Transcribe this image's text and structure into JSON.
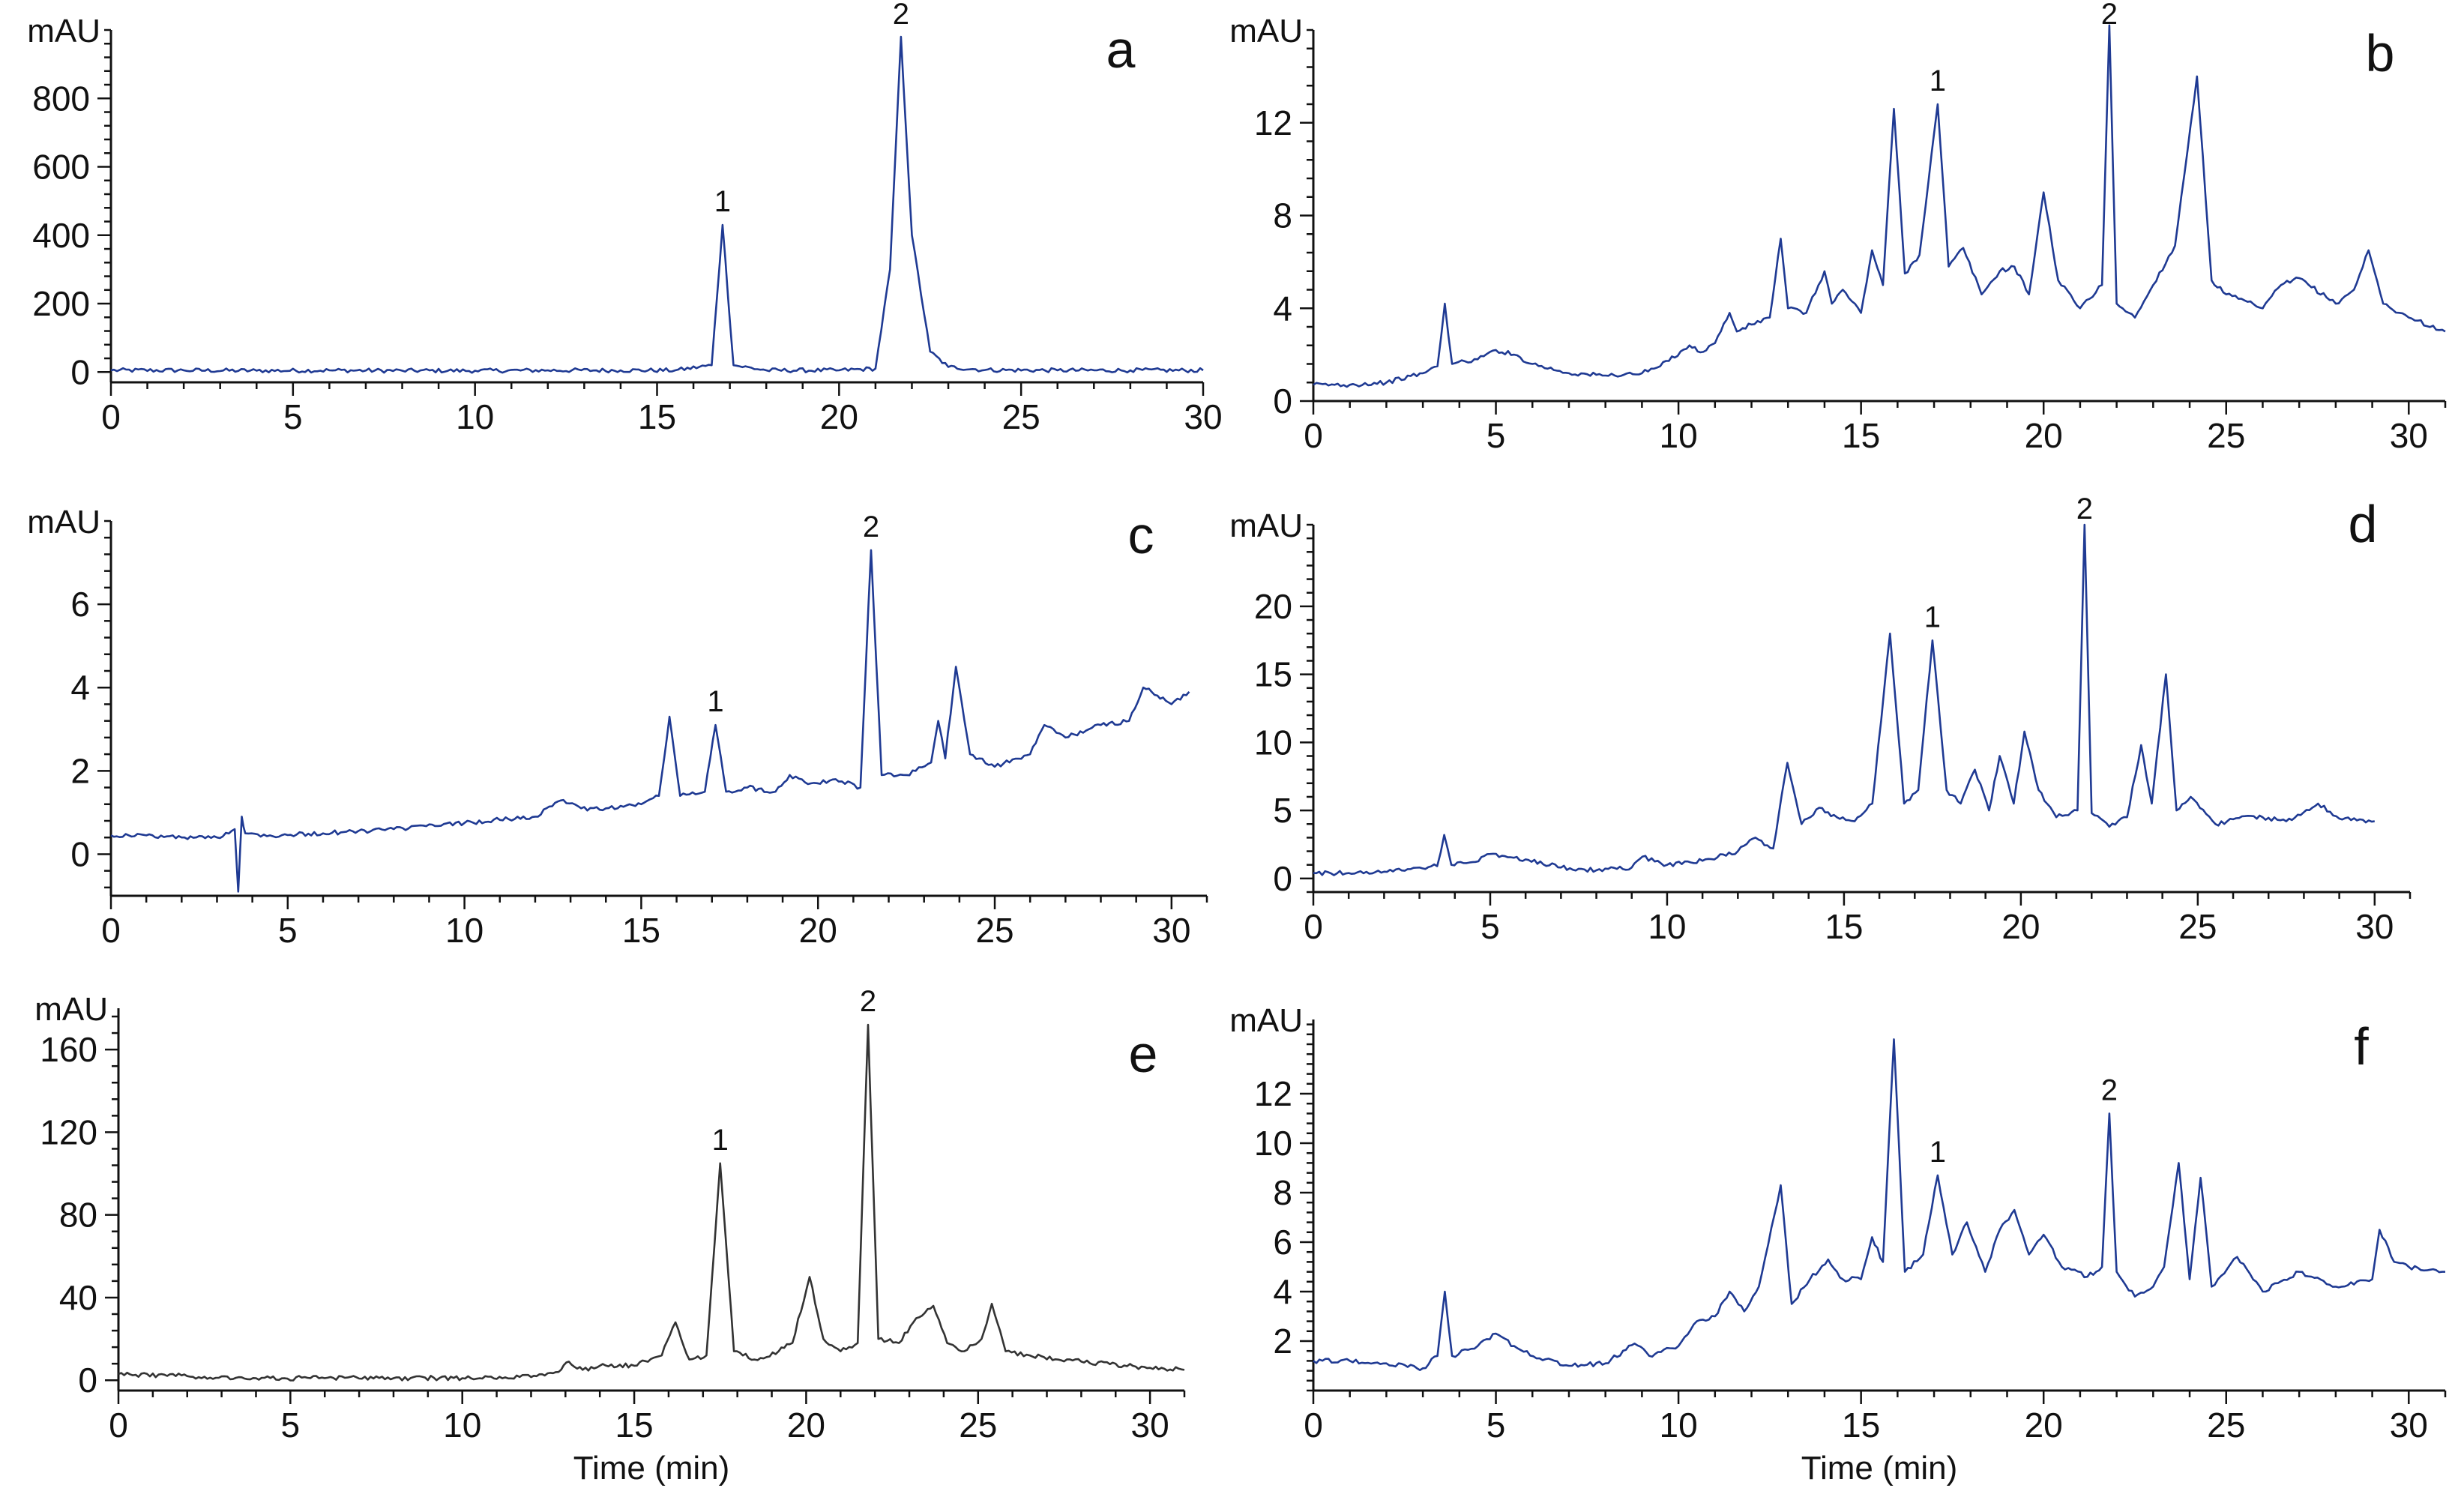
{
  "chart_data": [
    {
      "type": "line",
      "panel": "a",
      "ylabel": "mAU",
      "xlabel": "",
      "xlim": [
        0,
        30
      ],
      "ylim": [
        -30,
        1000
      ],
      "x_ticks": [
        0,
        5,
        10,
        15,
        20,
        25,
        30
      ],
      "y_ticks": [
        0,
        200,
        400,
        600,
        800
      ],
      "line_color": "#1f3a93",
      "baseline": 5,
      "peaks": [
        {
          "label": "1",
          "x": 16.8,
          "y": 430
        },
        {
          "label": "2",
          "x": 21.7,
          "y": 980
        }
      ],
      "series": [
        {
          "x": [
            0,
            2,
            4,
            6,
            8,
            10,
            12,
            14,
            15.5,
            16.5,
            16.8,
            17.1,
            18,
            20,
            21,
            21.4,
            21.7,
            22.0,
            22.5,
            23,
            24,
            26,
            28,
            30
          ],
          "values": [
            5,
            5,
            4,
            5,
            4,
            4,
            5,
            5,
            5,
            20,
            430,
            20,
            5,
            5,
            10,
            300,
            980,
            400,
            60,
            15,
            6,
            5,
            5,
            5
          ]
        }
      ]
    },
    {
      "type": "line",
      "panel": "b",
      "ylabel": "mAU",
      "xlabel": "",
      "xlim": [
        0,
        31
      ],
      "ylim": [
        0,
        16
      ],
      "x_ticks": [
        0,
        5,
        10,
        15,
        20,
        25,
        30
      ],
      "y_ticks": [
        0,
        4,
        8,
        12
      ],
      "line_color": "#1f3a93",
      "baseline": 0.7,
      "peaks": [
        {
          "label": "1",
          "x": 17.1,
          "y": 12.8
        },
        {
          "label": "2",
          "x": 21.8,
          "y": 16.2
        }
      ],
      "series": [
        {
          "x": [
            0,
            1,
            2,
            3,
            3.4,
            3.6,
            3.8,
            4.5,
            5,
            5.5,
            6,
            7,
            8,
            9,
            9.5,
            10.3,
            10.6,
            11,
            11.4,
            11.6,
            12,
            12.5,
            12.8,
            13,
            13.5,
            14,
            14.2,
            14.5,
            15,
            15.3,
            15.6,
            15.9,
            16.2,
            16.6,
            17.1,
            17.4,
            17.8,
            18.3,
            18.8,
            19.2,
            19.6,
            20.0,
            20.4,
            21,
            21.6,
            21.8,
            22.0,
            22.5,
            23,
            23.6,
            24.2,
            24.6,
            25,
            26,
            26.5,
            27,
            28,
            28.5,
            28.9,
            29.3,
            30,
            31
          ],
          "values": [
            0.7,
            0.7,
            0.8,
            1.2,
            1.5,
            4.2,
            1.6,
            1.8,
            2.2,
            2.0,
            1.6,
            1.2,
            1.1,
            1.2,
            1.5,
            2.4,
            2.1,
            2.5,
            3.8,
            3.0,
            3.3,
            3.6,
            7.0,
            4.0,
            3.8,
            5.6,
            4.2,
            4.8,
            3.8,
            6.5,
            5.0,
            12.6,
            5.5,
            6.3,
            12.8,
            5.8,
            6.6,
            4.6,
            5.6,
            5.8,
            4.6,
            9.0,
            5.2,
            4.0,
            5.0,
            16.2,
            4.2,
            3.6,
            5.0,
            6.7,
            14.0,
            5.2,
            4.6,
            4.0,
            5.0,
            5.3,
            4.2,
            4.8,
            6.5,
            4.2,
            3.6,
            3.0
          ]
        }
      ]
    },
    {
      "type": "line",
      "panel": "c",
      "ylabel": "mAU",
      "xlabel": "",
      "xlim": [
        0,
        31
      ],
      "ylim": [
        -1,
        8
      ],
      "x_ticks": [
        0,
        5,
        10,
        15,
        20,
        25,
        30
      ],
      "y_ticks": [
        0,
        2,
        4,
        6
      ],
      "line_color": "#1f3a93",
      "baseline": 0.45,
      "peaks": [
        {
          "label": "1",
          "x": 17.1,
          "y": 3.1
        },
        {
          "label": "2",
          "x": 21.5,
          "y": 7.3
        }
      ],
      "series": [
        {
          "x": [
            0,
            1,
            2,
            3,
            3.5,
            3.6,
            3.7,
            3.8,
            4.5,
            6,
            8,
            10,
            12,
            12.8,
            13.3,
            14,
            15,
            15.5,
            15.8,
            16.1,
            16.8,
            17.1,
            17.4,
            18,
            18.8,
            19.2,
            19.8,
            20.5,
            21.2,
            21.5,
            21.8,
            22.5,
            23.2,
            23.4,
            23.6,
            23.9,
            24.3,
            25,
            26,
            26.4,
            27,
            28,
            28.8,
            29.2,
            30,
            30.5
          ],
          "values": [
            0.45,
            0.45,
            0.4,
            0.4,
            0.6,
            -0.9,
            0.9,
            0.5,
            0.45,
            0.5,
            0.6,
            0.75,
            0.9,
            1.3,
            1.1,
            1.1,
            1.2,
            1.4,
            3.3,
            1.4,
            1.5,
            3.1,
            1.5,
            1.6,
            1.5,
            1.9,
            1.7,
            1.8,
            1.6,
            7.3,
            1.9,
            1.9,
            2.2,
            3.2,
            2.3,
            4.5,
            2.4,
            2.1,
            2.4,
            3.1,
            2.8,
            3.1,
            3.2,
            4.0,
            3.6,
            3.9
          ]
        }
      ]
    },
    {
      "type": "line",
      "panel": "d",
      "ylabel": "mAU",
      "xlabel": "",
      "xlim": [
        0,
        31
      ],
      "ylim": [
        -1,
        26
      ],
      "x_ticks": [
        0,
        5,
        10,
        15,
        20,
        25,
        30
      ],
      "y_ticks": [
        0,
        5,
        10,
        15,
        20
      ],
      "line_color": "#1f3a93",
      "baseline": 0.4,
      "peaks": [
        {
          "label": "1",
          "x": 17.5,
          "y": 17.5
        },
        {
          "label": "2",
          "x": 21.8,
          "y": 26
        }
      ],
      "series": [
        {
          "x": [
            0,
            1,
            2,
            3,
            3.5,
            3.7,
            3.9,
            4.5,
            5,
            6,
            7,
            8,
            9,
            9.3,
            10,
            11,
            12,
            12.5,
            13,
            13.4,
            13.8,
            14.3,
            14.8,
            15.3,
            15.8,
            16.3,
            16.7,
            17.1,
            17.5,
            17.9,
            18.3,
            18.7,
            19.1,
            19.4,
            19.8,
            20.1,
            20.5,
            21,
            21.6,
            21.8,
            22.0,
            22.5,
            23,
            23.4,
            23.7,
            24.1,
            24.4,
            24.8,
            25.5,
            26.5,
            27.5,
            28.4,
            29,
            30
          ],
          "values": [
            0.4,
            0.4,
            0.5,
            0.8,
            0.9,
            3.2,
            1.0,
            1.2,
            1.8,
            1.4,
            0.8,
            0.6,
            0.8,
            1.6,
            1.0,
            1.3,
            2.0,
            3.0,
            2.2,
            8.5,
            4.0,
            5.2,
            4.5,
            4.2,
            5.5,
            18.0,
            5.5,
            6.5,
            17.5,
            6.5,
            5.5,
            8.0,
            5.0,
            9.0,
            5.5,
            10.8,
            6.5,
            4.5,
            5.0,
            26.0,
            4.8,
            3.8,
            4.5,
            9.8,
            5.5,
            15.0,
            5.0,
            6.0,
            4.0,
            4.6,
            4.2,
            5.5,
            4.4,
            4.2
          ]
        }
      ]
    },
    {
      "type": "line",
      "panel": "e",
      "ylabel": "mAU",
      "xlabel": "Time (min)",
      "xlim": [
        0,
        31
      ],
      "ylim": [
        -5,
        180
      ],
      "x_ticks": [
        0,
        5,
        10,
        15,
        20,
        25,
        30
      ],
      "y_ticks": [
        0,
        40,
        80,
        120,
        160
      ],
      "line_color": "#333333",
      "baseline": 1,
      "peaks": [
        {
          "label": "1",
          "x": 17.5,
          "y": 105
        },
        {
          "label": "2",
          "x": 21.8,
          "y": 172
        }
      ],
      "series": [
        {
          "x": [
            0,
            2,
            4,
            6,
            8,
            10,
            12,
            12.8,
            13.1,
            13.5,
            14,
            15,
            15.8,
            16.2,
            16.6,
            17.1,
            17.5,
            17.9,
            18.5,
            19.2,
            19.6,
            20.1,
            20.5,
            21,
            21.5,
            21.8,
            22.1,
            22.7,
            23.2,
            23.7,
            24.1,
            24.6,
            25.1,
            25.4,
            25.8,
            26.5,
            28,
            30,
            31
          ],
          "values": [
            3,
            2,
            1,
            1,
            1,
            1,
            1.5,
            4,
            9,
            5,
            7,
            7,
            12,
            28,
            10,
            12,
            105,
            14,
            10,
            14,
            18,
            50,
            20,
            14,
            18,
            172,
            20,
            18,
            30,
            36,
            18,
            14,
            20,
            37,
            14,
            12,
            9,
            6,
            5
          ]
        }
      ]
    },
    {
      "type": "line",
      "panel": "f",
      "ylabel": "mAU",
      "xlabel": "Time (min)",
      "xlim": [
        0,
        31
      ],
      "ylim": [
        0,
        15
      ],
      "x_ticks": [
        0,
        5,
        10,
        15,
        20,
        25,
        30
      ],
      "y_ticks": [
        2,
        4,
        6,
        8,
        10,
        12
      ],
      "line_color": "#1f3a93",
      "baseline": 1.2,
      "peaks": [
        {
          "label": "1",
          "x": 17.1,
          "y": 8.7
        },
        {
          "label": "2",
          "x": 21.8,
          "y": 11.2
        }
      ],
      "series": [
        {
          "x": [
            0,
            1,
            2,
            3,
            3.4,
            3.6,
            3.8,
            4.5,
            5,
            5.5,
            6.2,
            7,
            8,
            8.8,
            9.2,
            10,
            10.5,
            11,
            11.4,
            11.8,
            12.2,
            12.8,
            13.1,
            13.6,
            14.1,
            14.5,
            15,
            15.3,
            15.6,
            15.9,
            16.2,
            16.7,
            17.1,
            17.5,
            17.9,
            18.4,
            18.8,
            19.2,
            19.6,
            20,
            20.5,
            21.2,
            21.6,
            21.8,
            22.0,
            22.5,
            23,
            23.3,
            23.7,
            24.0,
            24.3,
            24.6,
            25.3,
            26,
            27,
            28,
            29,
            29.2,
            29.6,
            30,
            31
          ],
          "values": [
            1.2,
            1.2,
            1.1,
            0.9,
            1.4,
            4.0,
            1.4,
            1.8,
            2.3,
            1.8,
            1.3,
            1.0,
            1.1,
            1.9,
            1.4,
            1.8,
            2.8,
            3.0,
            4.0,
            3.2,
            4.2,
            8.3,
            3.5,
            4.5,
            5.3,
            4.5,
            4.5,
            6.2,
            5.2,
            14.2,
            4.8,
            5.5,
            8.7,
            5.5,
            6.8,
            4.8,
            6.5,
            7.3,
            5.5,
            6.3,
            5.0,
            4.6,
            5.0,
            11.2,
            4.8,
            3.8,
            4.2,
            5.0,
            9.2,
            4.5,
            8.6,
            4.2,
            5.4,
            4.0,
            4.8,
            4.2,
            4.5,
            6.5,
            5.2,
            5.0,
            4.8
          ]
        }
      ]
    }
  ]
}
